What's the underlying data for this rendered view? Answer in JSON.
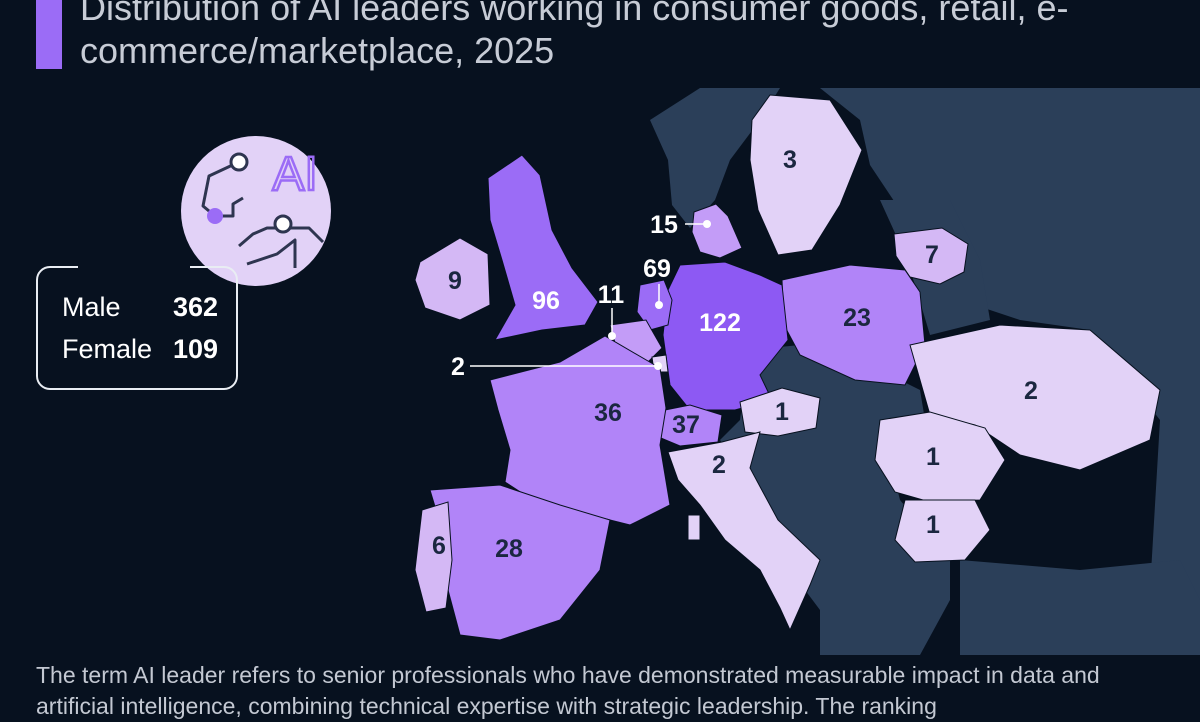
{
  "title": "Distribution of AI leaders working in consumer goods, retail, e-commerce/marketplace, 2025",
  "badge": {
    "text": "AI"
  },
  "gender": {
    "rows": [
      {
        "label": "Male",
        "value": "362"
      },
      {
        "label": "Female",
        "value": "109"
      }
    ]
  },
  "chart_data": {
    "type": "choropleth",
    "unit": "AI leaders",
    "regions": [
      {
        "name": "Germany",
        "value": 122
      },
      {
        "name": "United Kingdom",
        "value": 96
      },
      {
        "name": "Netherlands",
        "value": 69
      },
      {
        "name": "Switzerland",
        "value": 37
      },
      {
        "name": "France",
        "value": 36
      },
      {
        "name": "Spain",
        "value": 28
      },
      {
        "name": "Poland",
        "value": 23
      },
      {
        "name": "Denmark",
        "value": 15
      },
      {
        "name": "Belgium",
        "value": 11
      },
      {
        "name": "Ireland",
        "value": 9
      },
      {
        "name": "Lithuania",
        "value": 7
      },
      {
        "name": "Portugal",
        "value": 6
      },
      {
        "name": "Sweden",
        "value": 3
      },
      {
        "name": "Ukraine",
        "value": 2
      },
      {
        "name": "Italy",
        "value": 2
      },
      {
        "name": "Luxembourg",
        "value": 2
      },
      {
        "name": "Austria",
        "value": 1
      },
      {
        "name": "Romania",
        "value": 1
      },
      {
        "name": "Bulgaria",
        "value": 1
      }
    ]
  },
  "colors": {
    "background": "#07111f",
    "no_data_land": "#2b3f59",
    "scale": [
      "#e2d2f7",
      "#d4b8f5",
      "#c39cf7",
      "#b184f8",
      "#9b6cf6",
      "#8d59f3"
    ]
  },
  "footnote": "The term AI leader refers to senior professionals who have demonstrated measurable impact in data and artificial intelligence, combining technical expertise with strategic leadership. The ranking"
}
